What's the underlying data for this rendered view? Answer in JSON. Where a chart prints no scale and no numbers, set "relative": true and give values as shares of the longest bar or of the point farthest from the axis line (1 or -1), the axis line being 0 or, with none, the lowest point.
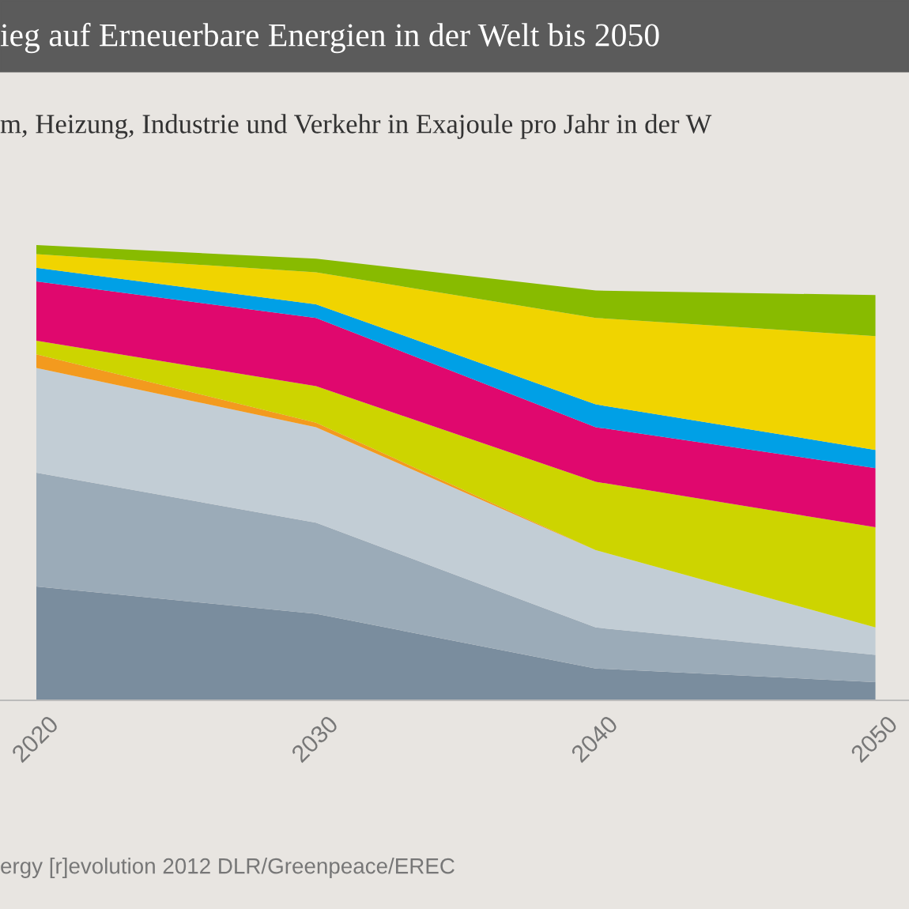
{
  "chart_data": {
    "type": "area",
    "stacked": true,
    "relative": true,
    "title": "ieg auf Erneuerbare Energien in der Welt bis 2050",
    "subtitle": "m, Heizung, Industrie und Verkehr in Exajoule pro Jahr in der W",
    "annotations": [
      "ergy [r]evolution 2012 DLR/Greenpeace/EREC"
    ],
    "x": [
      2020,
      2030,
      2040,
      2050
    ],
    "xlim": [
      2018.7,
      2051.2
    ],
    "xticks": [
      2020,
      2030,
      2040,
      2050
    ],
    "tick_labels": "x",
    "grid": false,
    "legend": false,
    "series": [
      {
        "color": "#7a8d9e",
        "values": [
          0.25,
          0.19,
          0.07,
          0.04
        ]
      },
      {
        "color": "#9babb8",
        "values": [
          0.25,
          0.2,
          0.09,
          0.06
        ]
      },
      {
        "color": "#c2cdd5",
        "values": [
          0.23,
          0.21,
          0.17,
          0.06
        ]
      },
      {
        "color": "#f39a1e",
        "values": [
          0.03,
          0.01,
          0,
          0
        ]
      },
      {
        "color": "#cdd400",
        "values": [
          0.03,
          0.08,
          0.15,
          0.22
        ]
      },
      {
        "color": "#e0086e",
        "values": [
          0.13,
          0.15,
          0.12,
          0.13
        ]
      },
      {
        "color": "#00a0e6",
        "values": [
          0.03,
          0.03,
          0.05,
          0.04
        ]
      },
      {
        "color": "#f0d400",
        "values": [
          0.03,
          0.07,
          0.19,
          0.25
        ]
      },
      {
        "color": "#88bb00",
        "values": [
          0.02,
          0.03,
          0.06,
          0.09
        ]
      }
    ]
  }
}
